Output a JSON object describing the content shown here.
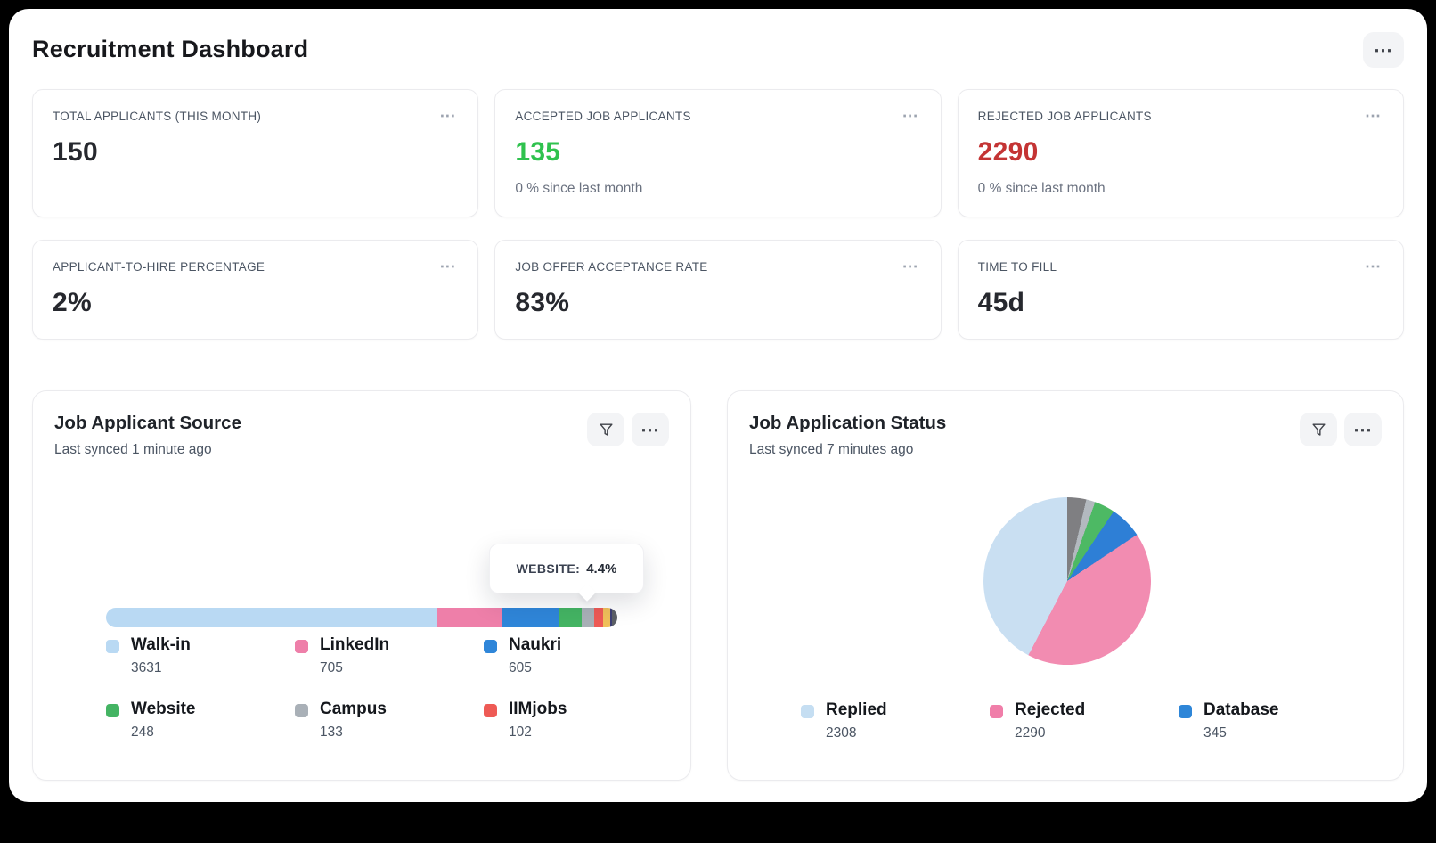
{
  "header": {
    "title": "Recruitment Dashboard"
  },
  "stat_cards": [
    {
      "label": "TOTAL APPLICANTS (THIS MONTH)",
      "value": "150",
      "value_color": "#26282e",
      "subtext": ""
    },
    {
      "label": "ACCEPTED JOB APPLICANTS",
      "value": "135",
      "value_color": "#2fc24e",
      "subtext": "0 % since last month"
    },
    {
      "label": "REJECTED JOB APPLICANTS",
      "value": "2290",
      "value_color": "#c43434",
      "subtext": "0 % since last month"
    },
    {
      "label": "APPLICANT-TO-HIRE PERCENTAGE",
      "value": "2%",
      "value_color": "#26282e",
      "subtext": ""
    },
    {
      "label": "JOB OFFER ACCEPTANCE RATE",
      "value": "83%",
      "value_color": "#26282e",
      "subtext": ""
    },
    {
      "label": "TIME TO FILL",
      "value": "45d",
      "value_color": "#26282e",
      "subtext": ""
    }
  ],
  "source_chart": {
    "title": "Job Applicant Source",
    "last_synced": "Last synced 1 minute ago",
    "tooltip": {
      "label": "WEBSITE:",
      "value": "4.4%"
    },
    "bar_segments": [
      {
        "name": "walk-in",
        "color": "#b9d9f3",
        "percent": 64.6
      },
      {
        "name": "linkedin",
        "color": "#ee7fa9",
        "percent": 12.9
      },
      {
        "name": "naukri",
        "color": "#2f86d9",
        "percent": 11.2
      },
      {
        "name": "website",
        "color": "#44b463",
        "percent": 4.4
      },
      {
        "name": "campus",
        "color": "#a9b0b7",
        "percent": 2.4
      },
      {
        "name": "iimjobs",
        "color": "#ee5a55",
        "percent": 1.8
      },
      {
        "name": "other-1",
        "color": "#f0c05a",
        "percent": 1.3
      },
      {
        "name": "other-2",
        "color": "#3d3f75",
        "percent": 0.3
      },
      {
        "name": "other-3",
        "color": "#5c6066",
        "percent": 1.1
      }
    ],
    "legend": [
      {
        "label": "Walk-in",
        "value": "3631",
        "color": "#b9d9f3"
      },
      {
        "label": "LinkedIn",
        "value": "705",
        "color": "#ee7fa9"
      },
      {
        "label": "Naukri",
        "value": "605",
        "color": "#2f86d9"
      },
      {
        "label": "Website",
        "value": "248",
        "color": "#44b463"
      },
      {
        "label": "Campus",
        "value": "133",
        "color": "#a9b0b7"
      },
      {
        "label": "IIMjobs",
        "value": "102",
        "color": "#ee5a55"
      }
    ]
  },
  "status_chart": {
    "title": "Job Application Status",
    "last_synced": "Last synced 7 minutes ago",
    "pie_segments": [
      {
        "name": "unlabeled-dark-gray",
        "color": "#7f7f82",
        "value": 200
      },
      {
        "name": "unlabeled-light-gray",
        "color": "#b3b9bf",
        "value": 95
      },
      {
        "name": "unlabeled-green",
        "color": "#4db964",
        "value": 215
      },
      {
        "name": "database",
        "color": "#2e7fd6",
        "value": 345
      },
      {
        "name": "rejected",
        "color": "#f28cb1",
        "value": 2290
      },
      {
        "name": "replied",
        "color": "#c9dff2",
        "value": 2308
      }
    ],
    "legend": [
      {
        "label": "Replied",
        "value": "2308",
        "color": "#c5def2"
      },
      {
        "label": "Rejected",
        "value": "2290",
        "color": "#f07ea9"
      },
      {
        "label": "Database",
        "value": "345",
        "color": "#2e86d8"
      }
    ]
  },
  "chart_data": [
    {
      "type": "bar",
      "variant": "horizontal-stacked",
      "title": "Job Applicant Source",
      "categories": [
        "Walk-in",
        "LinkedIn",
        "Naukri",
        "Website",
        "Campus",
        "IIMjobs"
      ],
      "values": [
        3631,
        705,
        605,
        248,
        133,
        102
      ],
      "annotations": [
        "WEBSITE: 4.4%"
      ],
      "legend_position": "bottom"
    },
    {
      "type": "pie",
      "title": "Job Application Status",
      "categories": [
        "Replied",
        "Rejected",
        "Database"
      ],
      "values": [
        2308,
        2290,
        345
      ],
      "legend_position": "bottom"
    }
  ]
}
